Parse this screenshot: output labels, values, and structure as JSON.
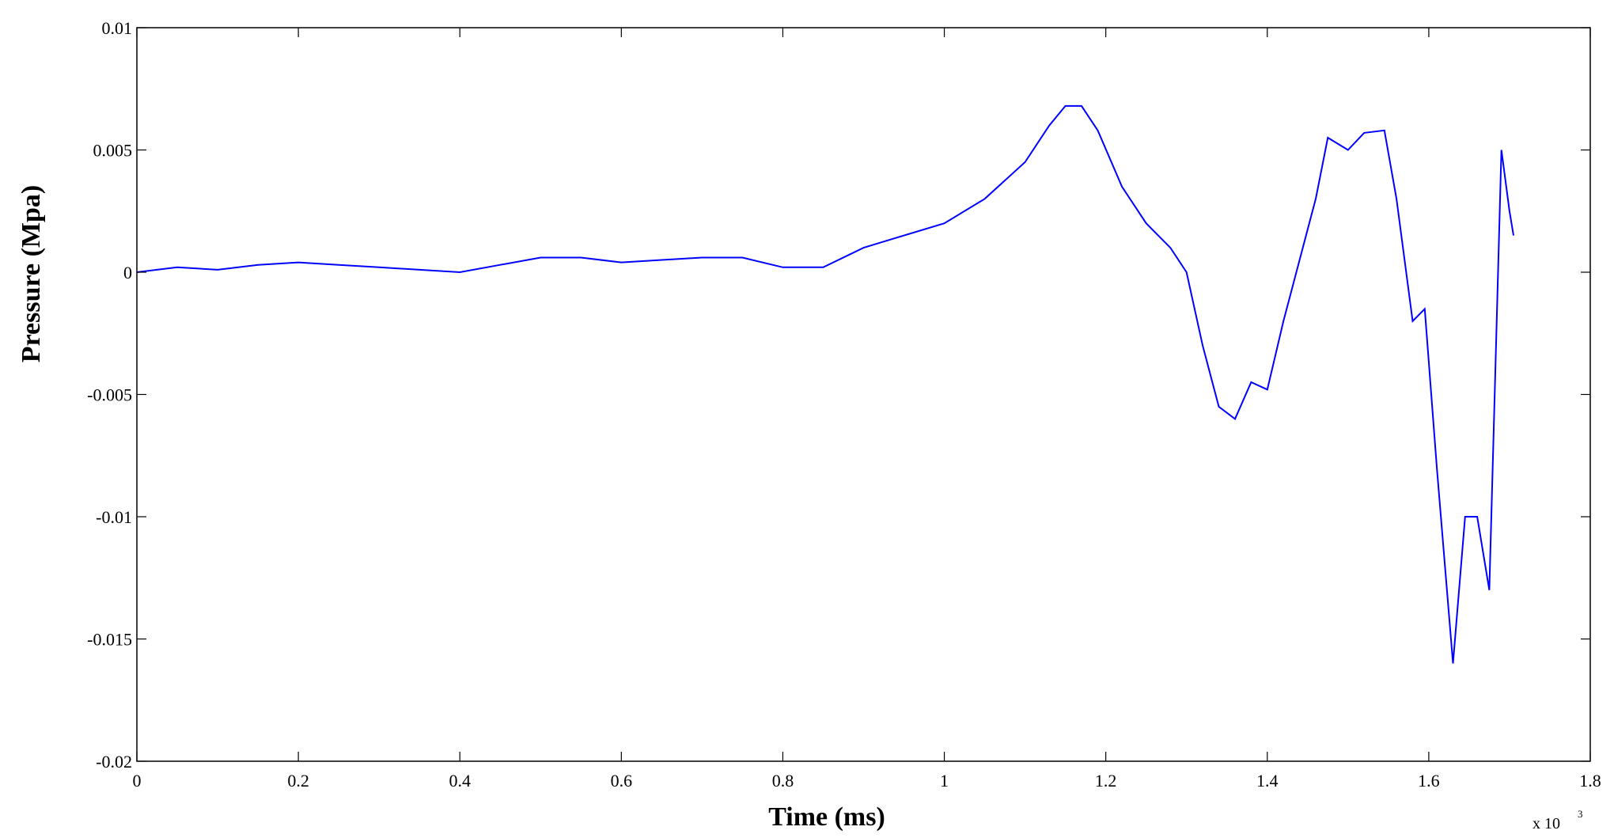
{
  "chart_data": {
    "type": "line",
    "title": "",
    "xlabel": "Time (ms)",
    "ylabel": "Pressure (Mpa)",
    "x_multiplier_label": "x 10",
    "x_multiplier_exponent": "3",
    "xlim": [
      0,
      1800
    ],
    "ylim": [
      -0.02,
      0.01
    ],
    "grid": false,
    "line_color": "#0000ff",
    "x_ticks": [
      0,
      200,
      400,
      600,
      800,
      1000,
      1200,
      1400,
      1600,
      1800
    ],
    "x_tick_labels": [
      "0",
      "0.2",
      "0.4",
      "0.6",
      "0.8",
      "1",
      "1.2",
      "1.4",
      "1.6",
      "1.8"
    ],
    "y_ticks": [
      0.01,
      0.005,
      0,
      -0.005,
      -0.01,
      -0.015,
      -0.02
    ],
    "y_tick_labels": [
      "0.01",
      "0.005",
      "0",
      "-0.005",
      "-0.01",
      "-0.015",
      "-0.02"
    ],
    "series": [
      {
        "values": [
          [
            0,
            0.0
          ],
          [
            50,
            0.0002
          ],
          [
            100,
            0.0001
          ],
          [
            150,
            0.0003
          ],
          [
            200,
            0.0004
          ],
          [
            250,
            0.0003
          ],
          [
            300,
            0.0002
          ],
          [
            350,
            0.0001
          ],
          [
            400,
            0.0
          ],
          [
            450,
            0.0003
          ],
          [
            500,
            0.0006
          ],
          [
            550,
            0.0006
          ],
          [
            600,
            0.0004
          ],
          [
            650,
            0.0005
          ],
          [
            700,
            0.0006
          ],
          [
            750,
            0.0006
          ],
          [
            800,
            0.0002
          ],
          [
            850,
            0.0002
          ],
          [
            900,
            0.001
          ],
          [
            950,
            0.0015
          ],
          [
            1000,
            0.002
          ],
          [
            1050,
            0.003
          ],
          [
            1100,
            0.0045
          ],
          [
            1130,
            0.006
          ],
          [
            1150,
            0.0068
          ],
          [
            1170,
            0.0068
          ],
          [
            1190,
            0.0058
          ],
          [
            1220,
            0.0035
          ],
          [
            1250,
            0.002
          ],
          [
            1280,
            0.001
          ],
          [
            1300,
            0.0
          ],
          [
            1320,
            -0.003
          ],
          [
            1340,
            -0.0055
          ],
          [
            1360,
            -0.006
          ],
          [
            1380,
            -0.0045
          ],
          [
            1400,
            -0.0048
          ],
          [
            1420,
            -0.002
          ],
          [
            1440,
            0.0005
          ],
          [
            1460,
            0.003
          ],
          [
            1475,
            0.0055
          ],
          [
            1500,
            0.005
          ],
          [
            1520,
            0.0057
          ],
          [
            1545,
            0.0058
          ],
          [
            1560,
            0.003
          ],
          [
            1580,
            -0.002
          ],
          [
            1595,
            -0.0015
          ],
          [
            1610,
            -0.008
          ],
          [
            1630,
            -0.016
          ],
          [
            1645,
            -0.01
          ],
          [
            1660,
            -0.01
          ],
          [
            1675,
            -0.013
          ],
          [
            1690,
            0.005
          ],
          [
            1700,
            0.0025
          ],
          [
            1705,
            0.0015
          ]
        ]
      }
    ]
  }
}
